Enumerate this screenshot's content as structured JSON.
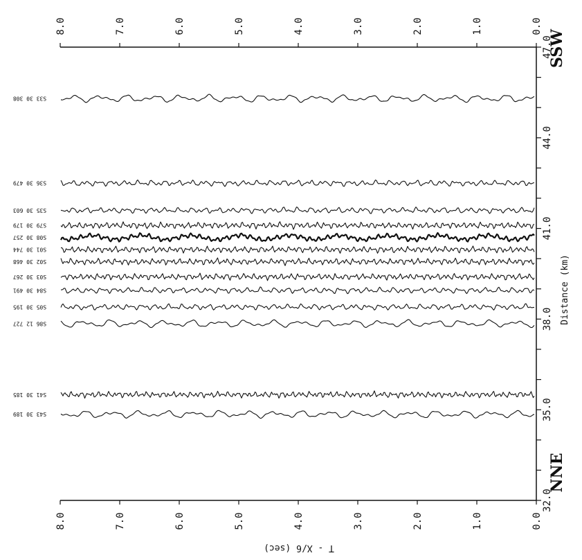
{
  "chart_data": {
    "type": "line",
    "title": "",
    "xlabel": "T - X/6 (sec)",
    "ylabel": "Distance (km)",
    "time_range": [
      0.0,
      8.0
    ],
    "distance_range": [
      32.0,
      47.0
    ],
    "time_ticks": [
      "8.0",
      "7.0",
      "6.0",
      "5.0",
      "4.0",
      "3.0",
      "2.0",
      "1.0",
      "0.0"
    ],
    "distance_ticks": [
      "47.0",
      "44.0",
      "41.0",
      "38.0",
      "35.0",
      "32.0"
    ],
    "distance_axis_label": "Distance (km)",
    "time_axis_label": "T - X/6 (sec)",
    "direction_top": "SSW",
    "direction_bottom": "NNE",
    "grid": false,
    "series": [
      {
        "name": "S33 30 308",
        "distance": 45.3,
        "style": "low"
      },
      {
        "name": "S36 30 479",
        "distance": 42.5,
        "style": "mid"
      },
      {
        "name": "S35 30 603",
        "distance": 41.6,
        "style": "mid"
      },
      {
        "name": "S79 30 179",
        "distance": 41.1,
        "style": "high"
      },
      {
        "name": "S08 30 257",
        "distance": 40.7,
        "style": "bold"
      },
      {
        "name": "S01 30 744",
        "distance": 40.3,
        "style": "high"
      },
      {
        "name": "S02 30 468",
        "distance": 39.9,
        "style": "high"
      },
      {
        "name": "S03 30 267",
        "distance": 39.4,
        "style": "high"
      },
      {
        "name": "S84 30 491",
        "distance": 38.95,
        "style": "mid"
      },
      {
        "name": "S05 30 195",
        "distance": 38.4,
        "style": "mid"
      },
      {
        "name": "S86 12 727",
        "distance": 37.85,
        "style": "low"
      },
      {
        "name": "S41 30 185",
        "distance": 35.5,
        "style": "high"
      },
      {
        "name": "S43 30 189",
        "distance": 34.85,
        "style": "low"
      }
    ]
  }
}
